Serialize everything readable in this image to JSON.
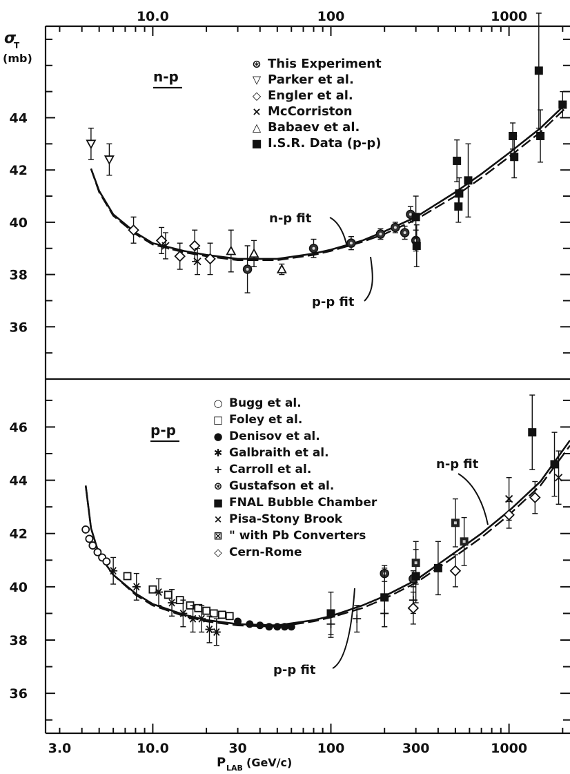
{
  "figure": {
    "y_axis_symbol": "σ",
    "y_axis_subscript": "T",
    "y_axis_unit": "(mb)",
    "x_axis_symbol": "P",
    "x_axis_subscript": "LAB",
    "x_axis_unit": "(GeV/c)",
    "top_tick_labels": [
      "10.0",
      "100",
      "1000"
    ],
    "bottom_tick_labels": [
      "3.0",
      "10.0",
      "30",
      "100",
      "300",
      "1000"
    ]
  },
  "chart_data": [
    {
      "type": "scatter",
      "panel_label": "n-p",
      "x_scale": "log",
      "xlim": [
        2.5,
        2200
      ],
      "ylim": [
        34,
        47.5
      ],
      "y_ticks": [
        36,
        38,
        40,
        42,
        44
      ],
      "legend_position": "top-center",
      "legend": [
        {
          "marker": "⊛",
          "text": "This Experiment"
        },
        {
          "marker": "▽",
          "text": "Parker et al."
        },
        {
          "marker": "◇",
          "text": "Engler et al."
        },
        {
          "marker": "×",
          "text": "McCorriston"
        },
        {
          "marker": "△",
          "text": "Babaev et al."
        },
        {
          "marker": "■",
          "text": "I.S.R. Data (p-p)"
        }
      ],
      "curve_labels": {
        "solid": "n-p fit",
        "dashed": "p-p fit"
      },
      "series": [
        {
          "name": "This Experiment",
          "marker": "dotcircle",
          "points": [
            [
              34,
              38.2,
              0.9
            ],
            [
              80,
              39.0,
              0.35
            ],
            [
              130,
              39.2,
              0.25
            ],
            [
              190,
              39.55,
              0.2
            ],
            [
              230,
              39.8,
              0.2
            ],
            [
              260,
              39.6,
              0.25
            ],
            [
              280,
              40.3,
              0.3
            ],
            [
              300,
              39.3,
              0.4
            ]
          ]
        },
        {
          "name": "Parker et al.",
          "marker": "tri-down",
          "points": [
            [
              4.5,
              43.0,
              0.6
            ],
            [
              5.7,
              42.4,
              0.6
            ]
          ]
        },
        {
          "name": "Engler et al.",
          "marker": "diamond",
          "points": [
            [
              7.8,
              39.7,
              0.5
            ],
            [
              11.2,
              39.3,
              0.5
            ],
            [
              14.2,
              38.7,
              0.5
            ],
            [
              17.2,
              39.1,
              0.6
            ],
            [
              21,
              38.6,
              0.6
            ]
          ]
        },
        {
          "name": "McCorriston",
          "marker": "cross",
          "points": [
            [
              11.8,
              39.1,
              0.5
            ],
            [
              17.8,
              38.5,
              0.5
            ]
          ]
        },
        {
          "name": "Babaev et al.",
          "marker": "tri-up",
          "points": [
            [
              27.5,
              38.9,
              0.8
            ],
            [
              37,
              38.8,
              0.5
            ],
            [
              53,
              38.2,
              0.2
            ]
          ]
        },
        {
          "name": "I.S.R. Data (p-p)",
          "marker": "square",
          "points": [
            [
              300,
              40.2,
              0.8
            ],
            [
              303,
              39.1,
              0.8
            ],
            [
              510,
              42.35,
              0.8
            ],
            [
              520,
              40.6,
              0.6
            ],
            [
              525,
              41.1,
              0.6
            ],
            [
              590,
              41.6,
              1.4
            ],
            [
              1050,
              43.3,
              0.5
            ],
            [
              1070,
              42.5,
              0.8
            ],
            [
              1470,
              45.8,
              2.2
            ],
            [
              1500,
              43.3,
              1.0
            ],
            [
              2000,
              44.5,
              0.5
            ]
          ]
        }
      ],
      "fits": {
        "n-p fit": [
          [
            4.5,
            42.05
          ],
          [
            5,
            41.2
          ],
          [
            6,
            40.3
          ],
          [
            8,
            39.6
          ],
          [
            10,
            39.2
          ],
          [
            15,
            38.9
          ],
          [
            20,
            38.75
          ],
          [
            30,
            38.6
          ],
          [
            50,
            38.6
          ],
          [
            80,
            38.8
          ],
          [
            100,
            38.95
          ],
          [
            150,
            39.3
          ],
          [
            200,
            39.65
          ],
          [
            300,
            40.2
          ],
          [
            500,
            41.15
          ],
          [
            700,
            41.85
          ],
          [
            1000,
            42.65
          ],
          [
            1500,
            43.6
          ],
          [
            2100,
            44.55
          ]
        ],
        "p-p fit": [
          [
            4.5,
            42.05
          ],
          [
            5,
            41.15
          ],
          [
            6,
            40.25
          ],
          [
            8,
            39.55
          ],
          [
            10,
            39.15
          ],
          [
            15,
            38.85
          ],
          [
            20,
            38.7
          ],
          [
            30,
            38.55
          ],
          [
            50,
            38.55
          ],
          [
            80,
            38.75
          ],
          [
            100,
            38.9
          ],
          [
            150,
            39.25
          ],
          [
            200,
            39.55
          ],
          [
            300,
            40.1
          ],
          [
            500,
            41.0
          ],
          [
            700,
            41.7
          ],
          [
            1000,
            42.5
          ],
          [
            1500,
            43.45
          ],
          [
            2100,
            44.4
          ]
        ]
      }
    },
    {
      "type": "scatter",
      "panel_label": "p-p",
      "x_scale": "log",
      "xlim": [
        2.5,
        2200
      ],
      "ylim": [
        34.5,
        47.8
      ],
      "y_ticks": [
        36,
        38,
        40,
        42,
        44,
        46
      ],
      "legend_position": "top-center",
      "legend": [
        {
          "marker": "○",
          "text": "Bugg et al."
        },
        {
          "marker": "□",
          "text": "Foley et al."
        },
        {
          "marker": "●",
          "text": "Denisov et al."
        },
        {
          "marker": "✱",
          "text": "Galbraith et al."
        },
        {
          "marker": "+",
          "text": "Carroll et al."
        },
        {
          "marker": "⊛",
          "text": "Gustafson et al."
        },
        {
          "marker": "■",
          "text": "FNAL Bubble Chamber"
        },
        {
          "marker": "×",
          "text": "Pisa-Stony Brook"
        },
        {
          "marker": "⊠",
          "text": "\"    with Pb Converters"
        },
        {
          "marker": "◇",
          "text": "Cern-Rome"
        }
      ],
      "curve_labels": {
        "solid": "n-p fit",
        "dashed": "p-p fit"
      },
      "series": [
        {
          "name": "Bugg et al.",
          "marker": "circle",
          "points": [
            [
              4.2,
              42.15,
              0
            ],
            [
              4.4,
              41.8,
              0
            ],
            [
              4.6,
              41.55,
              0
            ],
            [
              4.9,
              41.3,
              0
            ],
            [
              5.2,
              41.1,
              0
            ],
            [
              5.5,
              40.95,
              0
            ]
          ]
        },
        {
          "name": "Foley et al.",
          "marker": "square-open",
          "points": [
            [
              7.2,
              40.4,
              0
            ],
            [
              10,
              39.9,
              0
            ],
            [
              12.2,
              39.7,
              0
            ],
            [
              14.2,
              39.5,
              0
            ],
            [
              16.2,
              39.3,
              0
            ],
            [
              18,
              39.2,
              0
            ],
            [
              20,
              39.1,
              0
            ],
            [
              22,
              39.0,
              0
            ],
            [
              24.5,
              38.95,
              0
            ],
            [
              27,
              38.9,
              0
            ]
          ]
        },
        {
          "name": "Denisov et al.",
          "marker": "dot",
          "points": [
            [
              30,
              38.7,
              0
            ],
            [
              35,
              38.6,
              0
            ],
            [
              40,
              38.55,
              0
            ],
            [
              45,
              38.5,
              0
            ],
            [
              50,
              38.5,
              0
            ],
            [
              55,
              38.5,
              0
            ],
            [
              60,
              38.5,
              0
            ]
          ]
        },
        {
          "name": "Galbraith et al.",
          "marker": "star",
          "points": [
            [
              6.0,
              40.6,
              0.5
            ],
            [
              8.1,
              40.0,
              0.5
            ],
            [
              10.8,
              39.8,
              0.5
            ],
            [
              12.8,
              39.4,
              0.5
            ],
            [
              14.8,
              39.0,
              0.5
            ],
            [
              16.8,
              38.8,
              0.5
            ],
            [
              18.8,
              38.8,
              0.5
            ],
            [
              20.8,
              38.4,
              0.5
            ],
            [
              22.8,
              38.3,
              0.5
            ]
          ]
        },
        {
          "name": "Carroll et al.",
          "marker": "plus",
          "points": [
            [
              100,
              38.6,
              0.5
            ],
            [
              140,
              38.8,
              0.5
            ],
            [
              200,
              39.0,
              0.5
            ],
            [
              290,
              39.5,
              0.5
            ]
          ]
        },
        {
          "name": "Gustafson et al.",
          "marker": "dotcircle",
          "points": [
            [
              200,
              40.5,
              0.3
            ],
            [
              290,
              40.3,
              0.3
            ]
          ]
        },
        {
          "name": "FNAL Bubble Chamber",
          "marker": "square",
          "points": [
            [
              100,
              39.0,
              0.8
            ],
            [
              200,
              39.6,
              1.1
            ],
            [
              300,
              40.4,
              1.0
            ],
            [
              400,
              40.7,
              1.0
            ],
            [
              1350,
              45.8,
              1.4
            ],
            [
              1800,
              44.6,
              1.2
            ]
          ]
        },
        {
          "name": "Pisa-Stony Brook",
          "marker": "cross",
          "points": [
            [
              1000,
              43.3,
              0.8
            ],
            [
              1900,
              44.1,
              1.0
            ]
          ]
        },
        {
          "name": "\"    with Pb Converters",
          "marker": "square-dot",
          "points": [
            [
              300,
              40.9,
              0.8
            ],
            [
              500,
              42.4,
              0.9
            ],
            [
              560,
              41.7,
              0.9
            ]
          ]
        },
        {
          "name": "Cern-Rome",
          "marker": "diamond",
          "points": [
            [
              290,
              39.2,
              0.6
            ],
            [
              500,
              40.6,
              0.6
            ],
            [
              1000,
              42.7,
              0.5
            ],
            [
              1400,
              43.35,
              0.6
            ]
          ]
        }
      ],
      "fits": {
        "n-p fit": [
          [
            4.2,
            43.8
          ],
          [
            4.5,
            42.2
          ],
          [
            5,
            41.2
          ],
          [
            6,
            40.45
          ],
          [
            8,
            39.75
          ],
          [
            10,
            39.35
          ],
          [
            15,
            38.95
          ],
          [
            20,
            38.75
          ],
          [
            30,
            38.6
          ],
          [
            50,
            38.55
          ],
          [
            80,
            38.75
          ],
          [
            100,
            38.9
          ],
          [
            150,
            39.3
          ],
          [
            200,
            39.65
          ],
          [
            300,
            40.25
          ],
          [
            500,
            41.3
          ],
          [
            700,
            42.0
          ],
          [
            1000,
            42.85
          ],
          [
            1500,
            43.95
          ],
          [
            2200,
            45.5
          ]
        ],
        "p-p fit": [
          [
            4.2,
            43.8
          ],
          [
            4.5,
            42.2
          ],
          [
            5,
            41.2
          ],
          [
            6,
            40.45
          ],
          [
            8,
            39.7
          ],
          [
            10,
            39.3
          ],
          [
            15,
            38.9
          ],
          [
            20,
            38.7
          ],
          [
            30,
            38.55
          ],
          [
            50,
            38.5
          ],
          [
            80,
            38.7
          ],
          [
            100,
            38.85
          ],
          [
            150,
            39.2
          ],
          [
            200,
            39.55
          ],
          [
            300,
            40.15
          ],
          [
            500,
            41.15
          ],
          [
            700,
            41.85
          ],
          [
            1000,
            42.7
          ],
          [
            1500,
            43.8
          ],
          [
            2200,
            45.3
          ]
        ]
      }
    }
  ]
}
